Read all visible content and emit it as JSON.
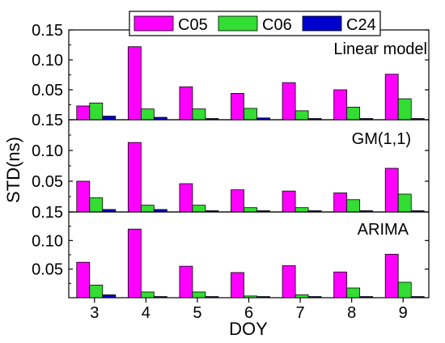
{
  "chart_data": {
    "type": "bar",
    "xlabel": "DOY",
    "ylabel": "STD(ns)",
    "categories": [
      "3",
      "4",
      "5",
      "6",
      "7",
      "8",
      "9"
    ],
    "legend": {
      "placement": "top-center",
      "entries": [
        {
          "name": "C05",
          "color": "#ff00ff"
        },
        {
          "name": "C06",
          "color": "#33dd33"
        },
        {
          "name": "C24",
          "color": "#0000cc"
        }
      ]
    },
    "ylim": [
      0,
      0.15
    ],
    "yticks": [
      0.05,
      0.1,
      0.15
    ],
    "ytick_labels": [
      "0.05",
      "0.10",
      "0.15"
    ],
    "panels": [
      {
        "label": "Linear model",
        "series": [
          {
            "name": "C05",
            "values": [
              0.023,
              0.122,
              0.055,
              0.044,
              0.062,
              0.05,
              0.076
            ]
          },
          {
            "name": "C06",
            "values": [
              0.028,
              0.018,
              0.018,
              0.019,
              0.015,
              0.021,
              0.035
            ]
          },
          {
            "name": "C24",
            "values": [
              0.006,
              0.004,
              0.002,
              0.003,
              0.002,
              0.002,
              0.002
            ]
          }
        ]
      },
      {
        "label": "GM(1,1)",
        "series": [
          {
            "name": "C05",
            "values": [
              0.05,
              0.113,
              0.046,
              0.036,
              0.034,
              0.031,
              0.071
            ]
          },
          {
            "name": "C06",
            "values": [
              0.023,
              0.011,
              0.011,
              0.007,
              0.007,
              0.02,
              0.029
            ]
          },
          {
            "name": "C24",
            "values": [
              0.004,
              0.004,
              0.002,
              0.002,
              0.002,
              0.002,
              0.002
            ]
          }
        ]
      },
      {
        "label": "ARIMA",
        "series": [
          {
            "name": "C05",
            "values": [
              0.062,
              0.12,
              0.055,
              0.044,
              0.056,
              0.045,
              0.076
            ]
          },
          {
            "name": "C06",
            "values": [
              0.022,
              0.01,
              0.01,
              0.003,
              0.005,
              0.017,
              0.027
            ]
          },
          {
            "name": "C24",
            "values": [
              0.005,
              0.002,
              0.002,
              0.002,
              0.002,
              0.002,
              0.002
            ]
          }
        ]
      }
    ]
  }
}
